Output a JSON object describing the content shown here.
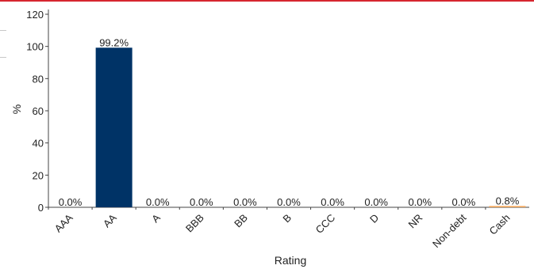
{
  "colors": {
    "top_rule": "#d6262f",
    "axis": "#444444",
    "bar_primary": "#003366",
    "bar_cash": "#f2a65a"
  },
  "chart_data": {
    "type": "bar",
    "title": "",
    "xlabel": "Rating",
    "ylabel": "%",
    "ylim": [
      0,
      120
    ],
    "yticks": [
      0,
      20,
      40,
      60,
      80,
      100,
      120
    ],
    "grid": false,
    "categories": [
      "AAA",
      "AA",
      "A",
      "BBB",
      "BB",
      "B",
      "CCC",
      "D",
      "NR",
      "Non-debt",
      "Cash"
    ],
    "values": [
      0.0,
      99.2,
      0.0,
      0.0,
      0.0,
      0.0,
      0.0,
      0.0,
      0.0,
      0.0,
      0.8
    ],
    "data_labels": [
      "0.0%",
      "99.2%",
      "0.0%",
      "0.0%",
      "0.0%",
      "0.0%",
      "0.0%",
      "0.0%",
      "0.0%",
      "0.0%",
      "0.8%"
    ],
    "bar_colors": [
      "#003366",
      "#003366",
      "#003366",
      "#003366",
      "#003366",
      "#003366",
      "#003366",
      "#003366",
      "#003366",
      "#003366",
      "#f2a65a"
    ]
  }
}
